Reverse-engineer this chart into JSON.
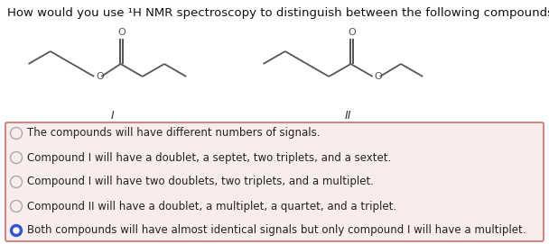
{
  "title": "How would you use ¹H NMR spectroscopy to distinguish between the following compounds?",
  "title_fontsize": 9.5,
  "bg_color": "#ffffff",
  "box_bg_color": "#f9ecec",
  "box_border_color": "#c97070",
  "options": [
    {
      "text": "The compounds will have different numbers of signals.",
      "selected": false
    },
    {
      "text": "Compound I will have a doublet, a septet, two triplets, and a sextet.",
      "selected": false
    },
    {
      "text": "Compound I will have two doublets, two triplets, and a multiplet.",
      "selected": false
    },
    {
      "text": "Compound II will have a doublet, a multiplet, a quartet, and a triplet.",
      "selected": false
    },
    {
      "text": "Both compounds will have almost identical signals but only compound I will have a multiplet.",
      "selected": true
    }
  ],
  "option_fontsize": 8.5,
  "selected_color": "#3355cc",
  "unselected_color": "#aaaaaa",
  "label_I": "I",
  "label_II": "II",
  "struct_color": "#555555",
  "struct_lw": 1.3
}
